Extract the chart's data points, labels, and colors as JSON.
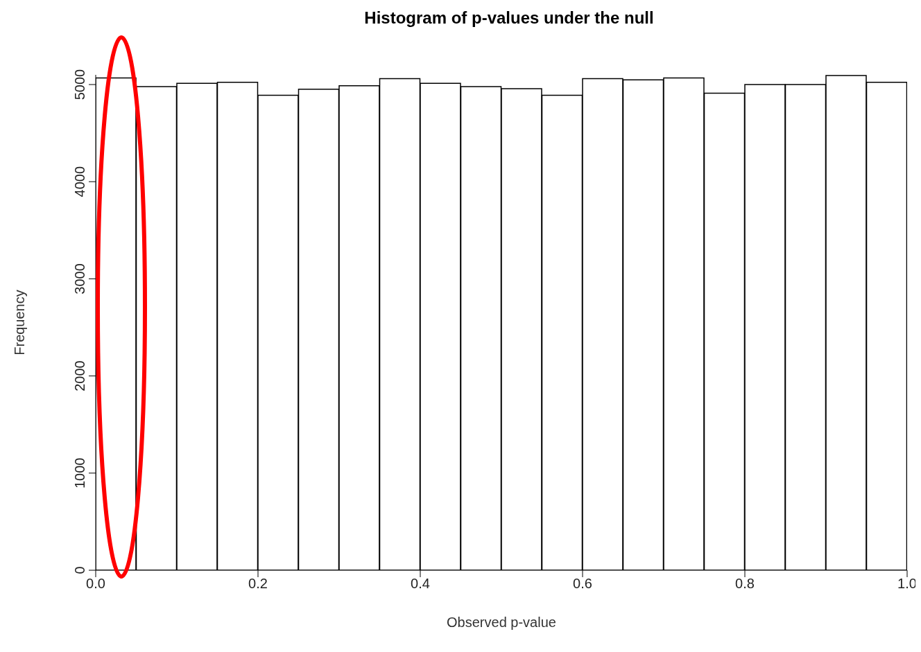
{
  "chart_data": {
    "type": "histogram",
    "title": "Histogram of p-values under the null",
    "xlabel": "Observed p-value",
    "ylabel": "Frequency",
    "bins": [
      0,
      0.05,
      0.1,
      0.15,
      0.2,
      0.25,
      0.3,
      0.35,
      0.4,
      0.45,
      0.5,
      0.55,
      0.6,
      0.65,
      0.7,
      0.75,
      0.8,
      0.85,
      0.9,
      0.95,
      1.0
    ],
    "values": [
      5068,
      4979,
      5012,
      5024,
      4890,
      4952,
      4988,
      5060,
      5012,
      4979,
      4958,
      4890,
      5060,
      5048,
      5068,
      4911,
      5000,
      5000,
      5092,
      5024
    ],
    "color": "#ffffff",
    "xlim": [
      0,
      1
    ],
    "xticks": [
      {
        "value": 0,
        "label": "0.0"
      },
      0.2,
      0.4,
      0.6,
      0.8,
      {
        "value": 1,
        "label": "1.0"
      }
    ],
    "ylim": [
      0,
      5100
    ],
    "yticks": [
      0,
      1000,
      2000,
      3000,
      4000,
      5000
    ],
    "grid": false,
    "legend": false
  }
}
